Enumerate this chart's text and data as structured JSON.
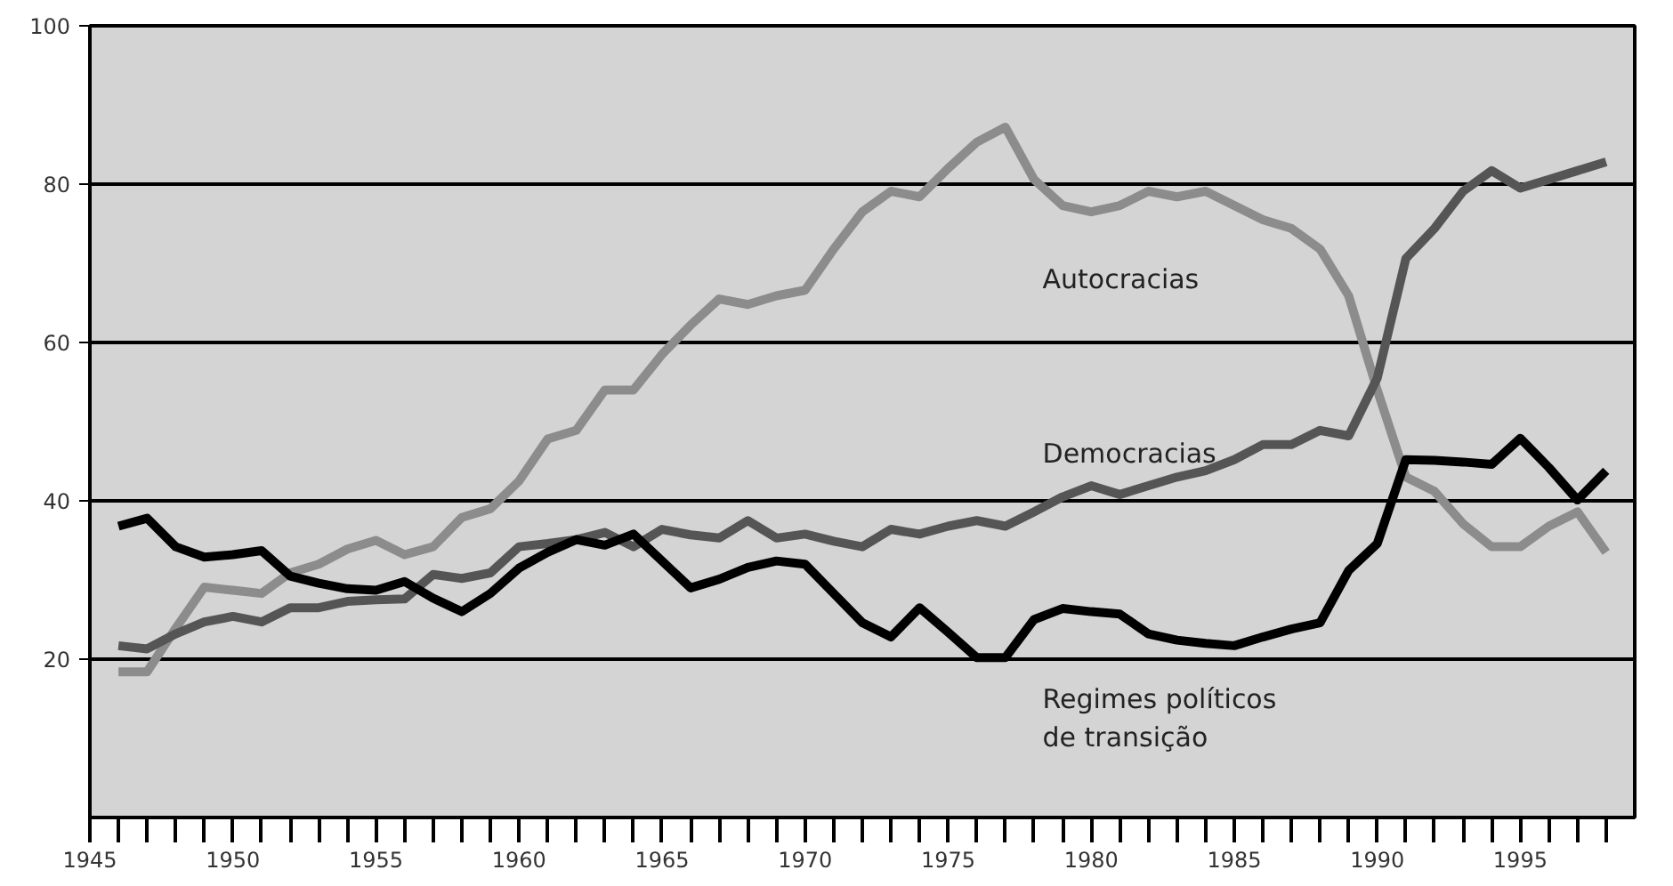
{
  "chart_data": {
    "type": "line",
    "x": [
      1946,
      1947,
      1948,
      1949,
      1950,
      1951,
      1952,
      1953,
      1954,
      1955,
      1956,
      1957,
      1958,
      1959,
      1960,
      1961,
      1962,
      1963,
      1964,
      1965,
      1966,
      1967,
      1968,
      1969,
      1970,
      1971,
      1972,
      1973,
      1974,
      1975,
      1976,
      1977,
      1978,
      1979,
      1980,
      1981,
      1982,
      1983,
      1984,
      1985,
      1986,
      1987,
      1988,
      1989,
      1990,
      1991,
      1992,
      1993,
      1994,
      1995,
      1996,
      1997,
      1998
    ],
    "series": [
      {
        "name": "Autocracias",
        "color": "#8c8c8c",
        "values": [
          18.4,
          18.4,
          23.9,
          29.1,
          28.7,
          28.3,
          30.9,
          32.0,
          33.9,
          35.0,
          33.2,
          34.2,
          37.9,
          39.0,
          42.5,
          47.8,
          48.9,
          54.0,
          54.0,
          58.5,
          62.2,
          65.5,
          64.8,
          65.9,
          66.6,
          71.8,
          76.5,
          79.1,
          78.4,
          82.0,
          85.3,
          87.2,
          80.6,
          77.3,
          76.5,
          77.3,
          79.1,
          78.4,
          79.1,
          77.3,
          75.5,
          74.4,
          71.8,
          65.9,
          54.0,
          43.0,
          41.2,
          37.1,
          34.2,
          34.2,
          36.8,
          38.6,
          33.5
        ]
      },
      {
        "name": "Democracias",
        "color": "#555555",
        "values": [
          21.7,
          21.3,
          23.2,
          24.7,
          25.4,
          24.7,
          26.5,
          26.5,
          27.3,
          27.5,
          27.6,
          30.7,
          30.2,
          30.9,
          34.2,
          34.6,
          35.1,
          36.0,
          34.2,
          36.4,
          35.7,
          35.3,
          37.5,
          35.3,
          35.8,
          34.9,
          34.2,
          36.4,
          35.8,
          36.8,
          37.5,
          36.8,
          38.6,
          40.5,
          41.9,
          40.8,
          41.9,
          43.0,
          43.8,
          45.2,
          47.1,
          47.1,
          48.9,
          48.2,
          55.5,
          70.6,
          74.4,
          79.1,
          81.7,
          79.5,
          80.6,
          81.7,
          82.8
        ]
      },
      {
        "name": "Regimes políticos\nde transição",
        "color": "#000000",
        "values": [
          36.8,
          37.8,
          34.2,
          32.9,
          33.2,
          33.7,
          30.5,
          29.6,
          28.9,
          28.7,
          29.8,
          27.7,
          26.0,
          28.3,
          31.5,
          33.5,
          35.1,
          34.4,
          35.8,
          32.4,
          29.0,
          30.1,
          31.6,
          32.4,
          32.0,
          28.3,
          24.6,
          22.8,
          26.5,
          23.4,
          20.2,
          20.2,
          25.0,
          26.4,
          26.0,
          25.7,
          23.2,
          22.4,
          22.0,
          21.7,
          22.8,
          23.8,
          24.6,
          31.2,
          34.6,
          45.2,
          45.1,
          44.9,
          44.6,
          47.9,
          44.2,
          40.1,
          43.8
        ]
      }
    ],
    "xlim": [
      1945,
      1999
    ],
    "xticks": [
      1945,
      {
        "value": 1946,
        "label": null
      },
      {
        "value": 1947,
        "label": null
      },
      {
        "value": 1948,
        "label": null
      },
      {
        "value": 1949,
        "label": null
      },
      1950,
      {
        "value": 1951,
        "label": null
      },
      {
        "value": 1952,
        "label": null
      },
      {
        "value": 1953,
        "label": null
      },
      {
        "value": 1954,
        "label": null
      },
      1955,
      {
        "value": 1956,
        "label": null
      },
      {
        "value": 1957,
        "label": null
      },
      {
        "value": 1958,
        "label": null
      },
      {
        "value": 1959,
        "label": null
      },
      1960,
      {
        "value": 1961,
        "label": null
      },
      {
        "value": 1962,
        "label": null
      },
      {
        "value": 1963,
        "label": null
      },
      {
        "value": 1964,
        "label": null
      },
      1965,
      {
        "value": 1966,
        "label": null
      },
      {
        "value": 1967,
        "label": null
      },
      {
        "value": 1968,
        "label": null
      },
      {
        "value": 1969,
        "label": null
      },
      1970,
      {
        "value": 1971,
        "label": null
      },
      {
        "value": 1972,
        "label": null
      },
      {
        "value": 1973,
        "label": null
      },
      {
        "value": 1974,
        "label": null
      },
      1975,
      {
        "value": 1976,
        "label": null
      },
      {
        "value": 1977,
        "label": null
      },
      {
        "value": 1978,
        "label": null
      },
      {
        "value": 1979,
        "label": null
      },
      1980,
      {
        "value": 1981,
        "label": null
      },
      {
        "value": 1982,
        "label": null
      },
      {
        "value": 1983,
        "label": null
      },
      {
        "value": 1984,
        "label": null
      },
      1985,
      {
        "value": 1986,
        "label": null
      },
      {
        "value": 1987,
        "label": null
      },
      {
        "value": 1988,
        "label": null
      },
      {
        "value": 1989,
        "label": null
      },
      1990,
      {
        "value": 1991,
        "label": null
      },
      {
        "value": 1992,
        "label": null
      },
      {
        "value": 1993,
        "label": null
      },
      {
        "value": 1994,
        "label": null
      },
      1995,
      {
        "value": 1996,
        "label": null
      },
      {
        "value": 1997,
        "label": null
      },
      {
        "value": 1998,
        "label": null
      }
    ],
    "ylim": [
      0,
      100
    ],
    "yticks": [
      20,
      40,
      60,
      80,
      100
    ],
    "grid": "y",
    "legend": false,
    "marker": "none",
    "line_style": "solid"
  }
}
